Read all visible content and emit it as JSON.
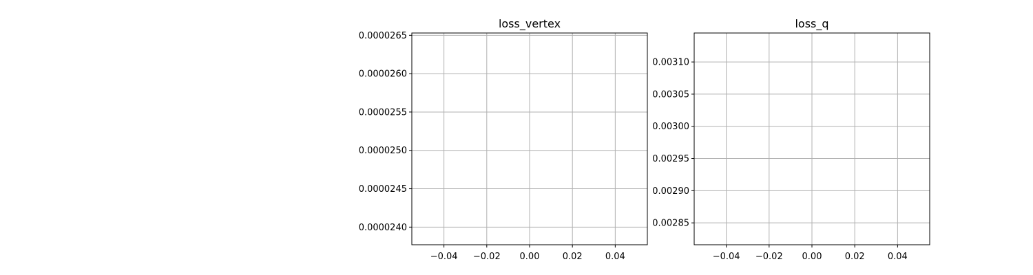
{
  "figure": {
    "background": "#ffffff",
    "grid_color": "#b0b0b0",
    "axes_color": "#000000"
  },
  "chart_data": [
    {
      "type": "line",
      "title": "loss_vertex",
      "xlabel": "",
      "ylabel": "",
      "grid": true,
      "xlim": [
        -0.055,
        0.055
      ],
      "ylim": [
        2.377e-05,
        2.653e-05
      ],
      "xticks": [
        -0.04,
        -0.02,
        0.0,
        0.02,
        0.04
      ],
      "xtick_labels": [
        "−0.04",
        "−0.02",
        "0.00",
        "0.02",
        "0.04"
      ],
      "yticks": [
        2.4e-05,
        2.45e-05,
        2.5e-05,
        2.55e-05,
        2.6e-05,
        2.65e-05
      ],
      "ytick_labels": [
        "0.0000240",
        "0.0000245",
        "0.0000250",
        "0.0000255",
        "0.0000260",
        "0.0000265"
      ],
      "series": []
    },
    {
      "type": "line",
      "title": "loss_q",
      "xlabel": "",
      "ylabel": "",
      "grid": true,
      "xlim": [
        -0.055,
        0.055
      ],
      "ylim": [
        0.002816,
        0.003145
      ],
      "xticks": [
        -0.04,
        -0.02,
        0.0,
        0.02,
        0.04
      ],
      "xtick_labels": [
        "−0.04",
        "−0.02",
        "0.00",
        "0.02",
        "0.04"
      ],
      "yticks": [
        0.00285,
        0.0029,
        0.00295,
        0.003,
        0.00305,
        0.0031
      ],
      "ytick_labels": [
        "0.00285",
        "0.00290",
        "0.00295",
        "0.00300",
        "0.00305",
        "0.00310"
      ],
      "series": []
    }
  ]
}
